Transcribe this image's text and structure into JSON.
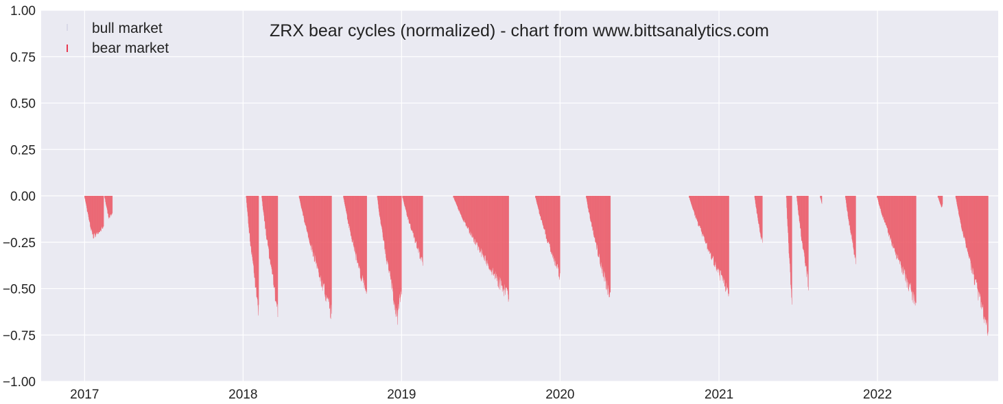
{
  "chart_data": {
    "type": "bar",
    "title": "ZRX bear cycles (normalized)  - chart from www.bittsanalytics.com",
    "xlabel": "",
    "ylabel": "",
    "x_range": [
      "2016-09-23",
      "2022-10-06"
    ],
    "ylim": [
      -1.0,
      1.0
    ],
    "y_ticks": [
      1.0,
      0.75,
      0.5,
      0.25,
      0.0,
      -0.25,
      -0.5,
      -0.75,
      -1.0
    ],
    "y_tick_labels": [
      "1.00",
      "0.75",
      "0.50",
      "0.25",
      "0.00",
      "−0.25",
      "−0.50",
      "−0.75",
      "−1.00"
    ],
    "x_ticks": [
      "2017-01-01",
      "2018-01-01",
      "2019-01-01",
      "2020-01-01",
      "2021-01-01",
      "2022-01-01"
    ],
    "x_tick_labels": [
      "2017",
      "2018",
      "2019",
      "2020",
      "2021",
      "2022"
    ],
    "grid": true,
    "legend_position": "top-left",
    "colors": {
      "background": "#eaeaf2",
      "grid": "#ffffff",
      "bear": "#f08080",
      "bear_edge": "#e8374f",
      "bull": "#d8d8e8"
    },
    "series": [
      {
        "name": "bull market",
        "values": []
      },
      {
        "name": "bear market",
        "cycles": [
          {
            "start": "2017-01-01",
            "end": "2017-02-14",
            "trough_date": "2017-01-21",
            "trough": -0.24
          },
          {
            "start": "2017-02-16",
            "end": "2017-03-06",
            "trough_date": "2017-02-26",
            "trough": -0.13
          },
          {
            "start": "2018-01-08",
            "end": "2018-02-06",
            "trough_date": "2018-02-06",
            "trough": -0.68
          },
          {
            "start": "2018-02-13",
            "end": "2018-03-22",
            "trough_date": "2018-03-22",
            "trough": -0.66
          },
          {
            "start": "2018-05-10",
            "end": "2018-07-24",
            "trough_date": "2018-07-24",
            "trough": -0.68
          },
          {
            "start": "2018-08-20",
            "end": "2018-10-13",
            "trough_date": "2018-10-13",
            "trough": -0.59
          },
          {
            "start": "2018-11-06",
            "end": "2019-01-01",
            "trough_date": "2018-12-23",
            "trough": -0.71
          },
          {
            "start": "2019-01-03",
            "end": "2019-02-19",
            "trough_date": "2019-02-19",
            "trough": -0.39
          },
          {
            "start": "2019-04-30",
            "end": "2019-09-05",
            "trough_date": "2019-09-05",
            "trough": -0.59
          },
          {
            "start": "2019-11-05",
            "end": "2020-01-01",
            "trough_date": "2020-01-01",
            "trough": -0.47
          },
          {
            "start": "2020-03-01",
            "end": "2020-04-26",
            "trough_date": "2020-04-26",
            "trough": -0.6
          },
          {
            "start": "2020-10-24",
            "end": "2021-01-24",
            "trough_date": "2021-01-24",
            "trough": -0.57
          },
          {
            "start": "2021-03-24",
            "end": "2021-04-11",
            "trough_date": "2021-04-11",
            "trough": -0.28
          },
          {
            "start": "2021-06-05",
            "end": "2021-06-18",
            "trough_date": "2021-06-18",
            "trough": -0.61
          },
          {
            "start": "2021-06-29",
            "end": "2021-07-26",
            "trough_date": "2021-07-26",
            "trough": -0.52
          },
          {
            "start": "2021-08-22",
            "end": "2021-08-26",
            "trough_date": "2021-08-26",
            "trough": -0.05
          },
          {
            "start": "2021-10-19",
            "end": "2021-11-12",
            "trough_date": "2021-11-12",
            "trough": -0.37
          },
          {
            "start": "2021-12-31",
            "end": "2022-03-31",
            "trough_date": "2022-03-31",
            "trough": -0.62
          },
          {
            "start": "2022-05-20",
            "end": "2022-05-31",
            "trough_date": "2022-05-29",
            "trough": -0.07
          },
          {
            "start": "2022-06-30",
            "end": "2022-09-13",
            "trough_date": "2022-09-13",
            "trough": -0.77
          }
        ]
      }
    ]
  }
}
